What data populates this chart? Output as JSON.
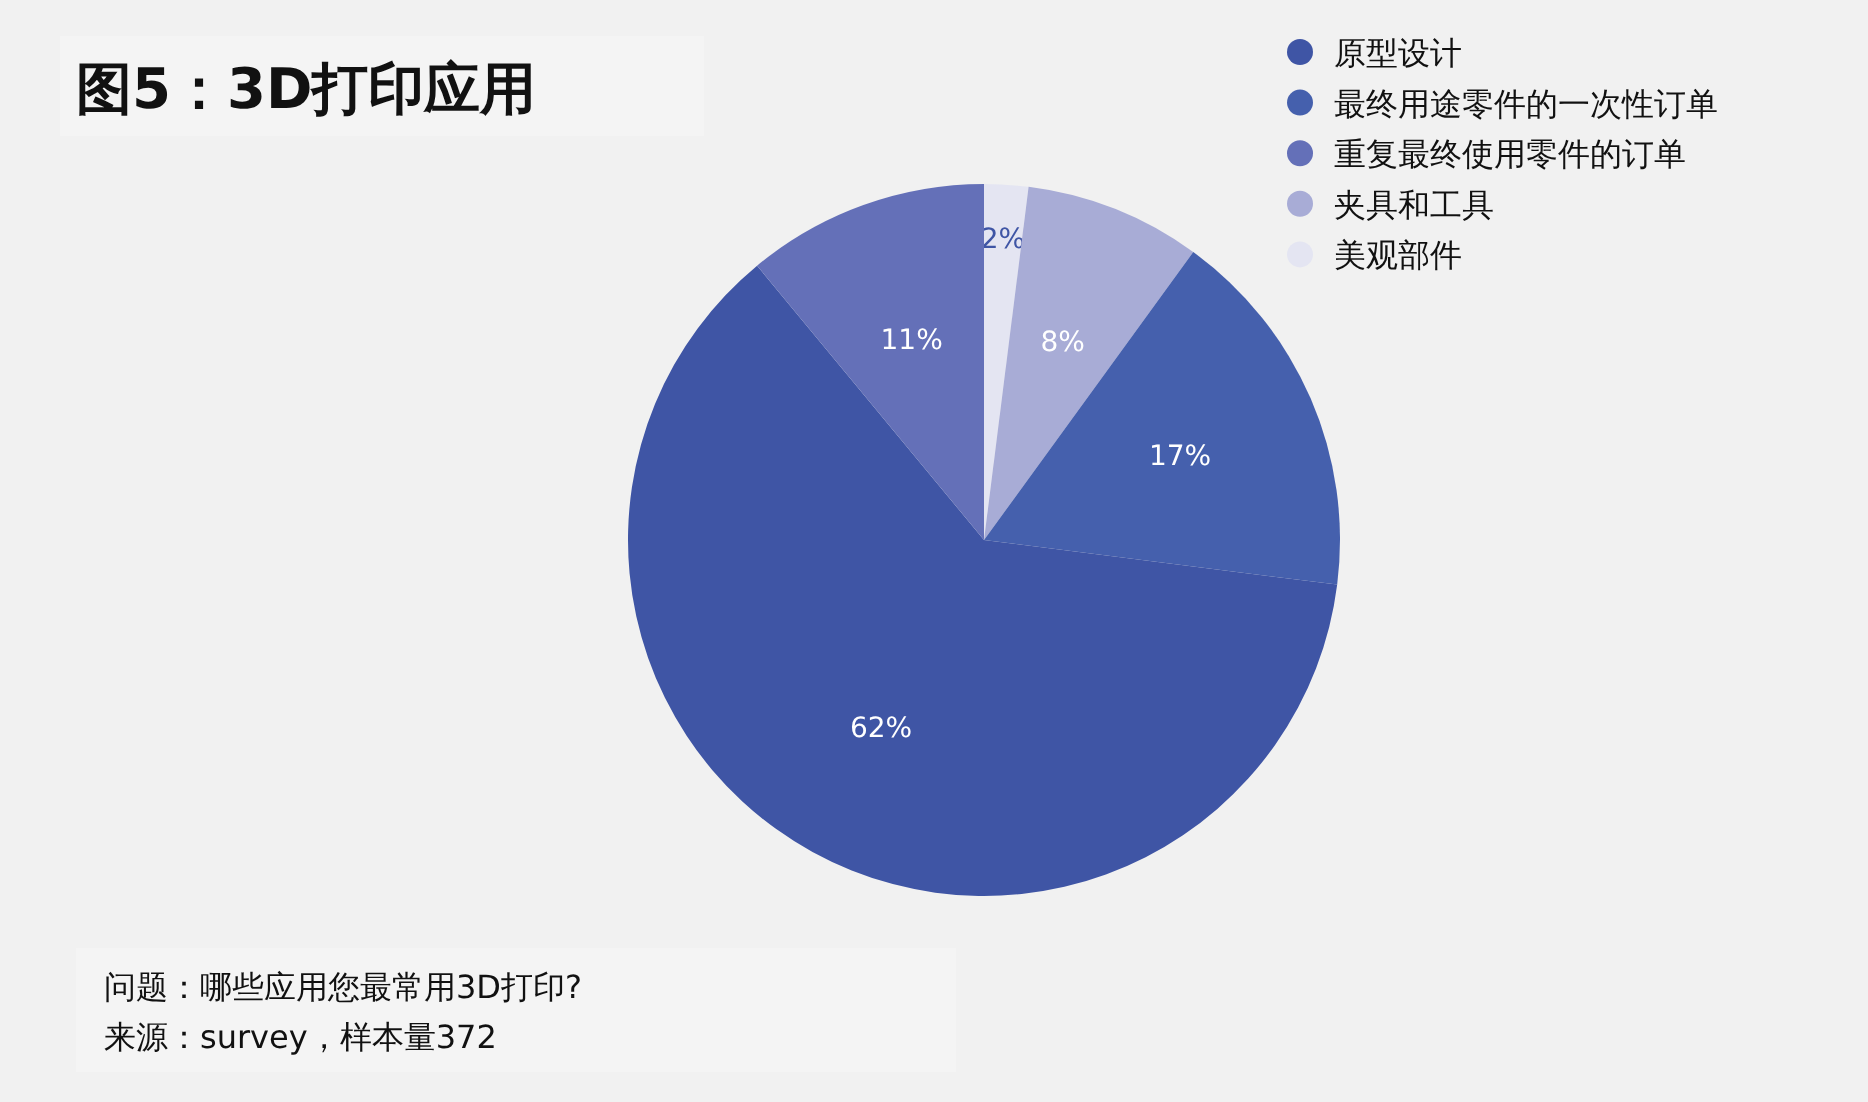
{
  "chart_data": {
    "type": "pie",
    "title": "图5：3D打印应用",
    "categories": [
      "美观部件",
      "夹具和工具",
      "最终用途零件的一次性订单",
      "原型设计",
      "重复最终使用零件的订单"
    ],
    "values": [
      2,
      8,
      17,
      62,
      11
    ],
    "colors": [
      "#e4e5f2",
      "#a8acd6",
      "#4560ad",
      "#3f55a5",
      "#6470b8"
    ],
    "value_labels": [
      "2%",
      "8%",
      "17%",
      "62%",
      "11%"
    ],
    "legend": "top right",
    "annotations": [
      "问题：哪些应用您最常用3D打印?",
      "来源：survey，样本量372"
    ]
  }
}
